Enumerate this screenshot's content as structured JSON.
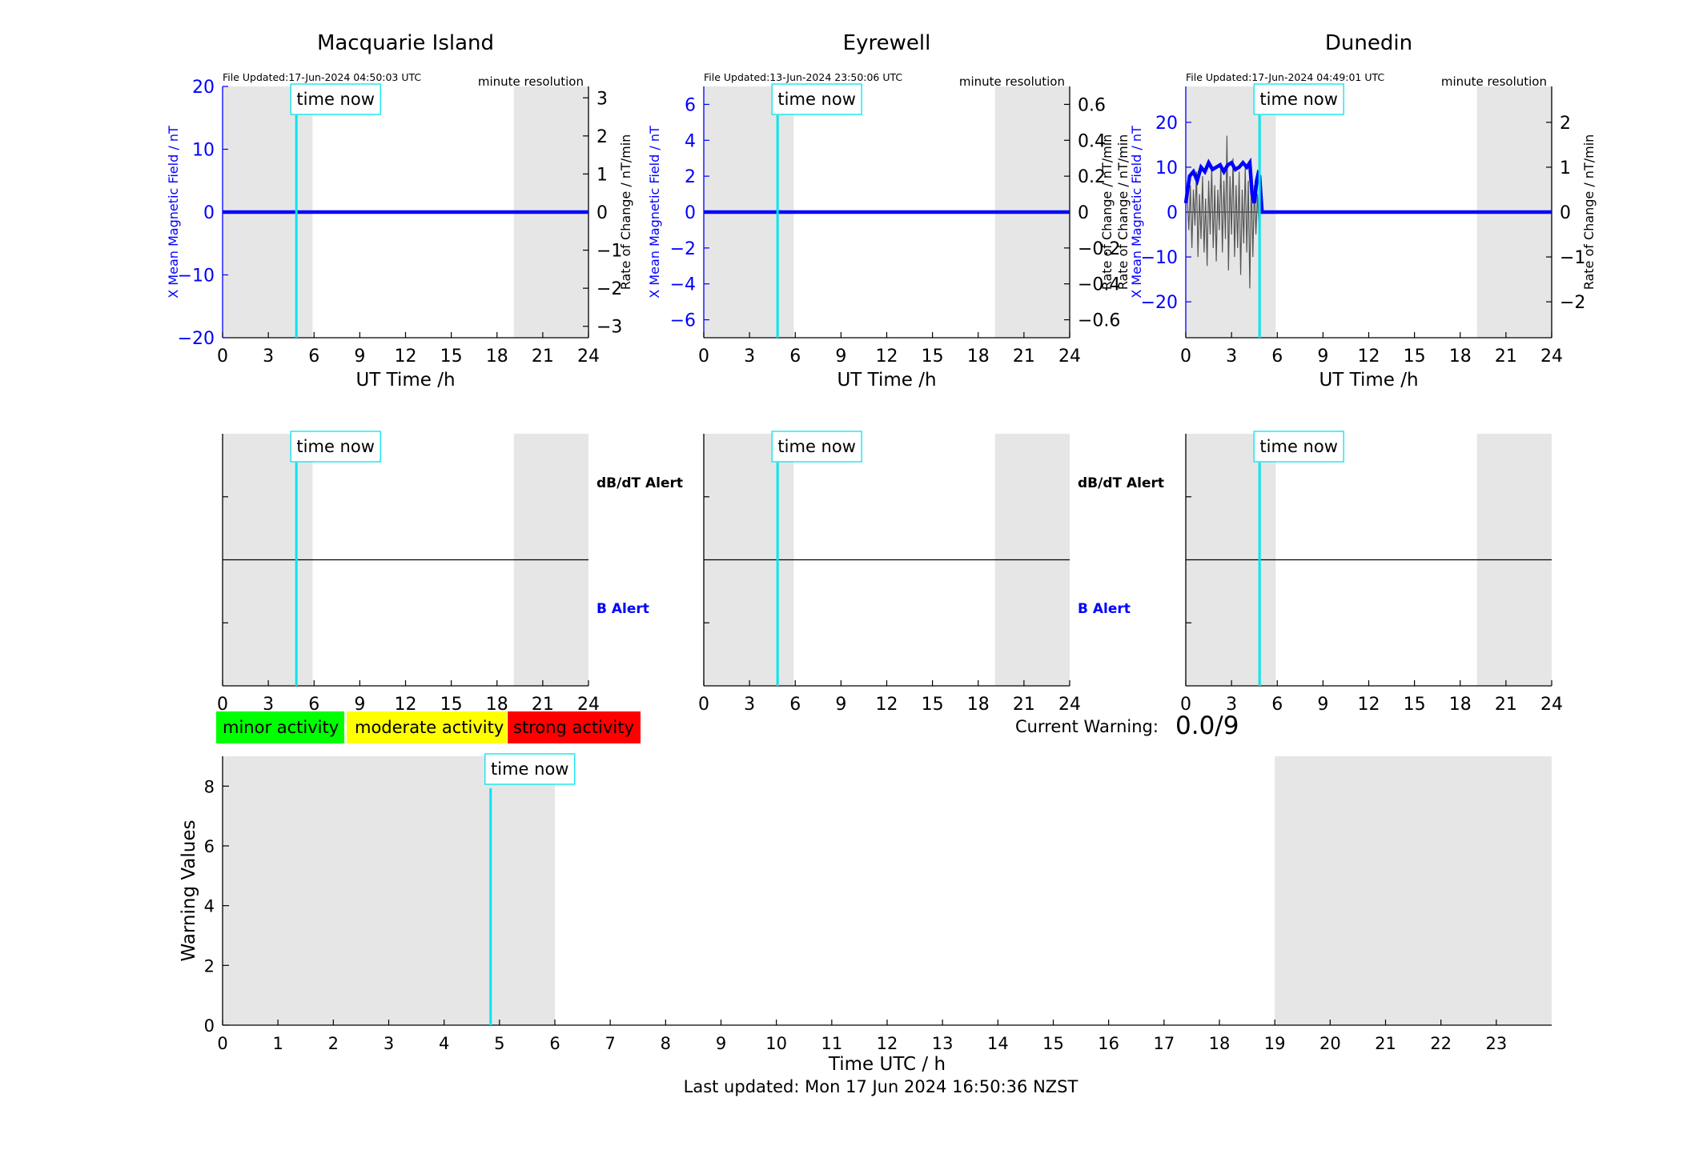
{
  "figure": {
    "last_updated": "Last updated: Mon 17 Jun 2024 16:50:36 NZST",
    "current_warning_label": "Current Warning:",
    "current_warning_value": "0.0/9",
    "time_now_label": "time now"
  },
  "legend": {
    "items": [
      {
        "label": "minor activity",
        "color": "#00ff00"
      },
      {
        "label": "moderate activity",
        "color": "#ffff00"
      },
      {
        "label": "strong activity",
        "color": "#ff0000"
      }
    ]
  },
  "colors": {
    "night_shade": "#e6e6e6",
    "time_now_line": "#00e5ee",
    "x_series": "#0000ff",
    "rate_series": "#555555",
    "b_alert": "#0000ff"
  },
  "chart_data": [
    {
      "type": "line",
      "title": "Macquarie Island",
      "file_updated": "File Updated:17-Jun-2024 04:50:03 UTC",
      "resolution": "minute resolution",
      "xlabel": "UT Time /h",
      "ylabel_left": "X Mean Magnetic Field / nT",
      "ylabel_right": "Rate of Change / nT/min",
      "xlim": [
        0,
        24
      ],
      "xticks": [
        0,
        3,
        6,
        9,
        12,
        15,
        18,
        21,
        24
      ],
      "ylim_left": [
        -20,
        20
      ],
      "yticks_left": [
        -20,
        -10,
        0,
        10,
        20
      ],
      "ylim_right": [
        -3.3,
        3.3
      ],
      "yticks_right": [
        -3,
        -2,
        -1,
        0,
        1,
        2,
        3
      ],
      "night_periods": [
        [
          0,
          5.9
        ],
        [
          19.1,
          24
        ]
      ],
      "time_now": 4.84,
      "series": [
        {
          "name": "X",
          "x": [
            0,
            24
          ],
          "y": [
            0,
            0
          ]
        }
      ]
    },
    {
      "type": "line",
      "title": "Eyrewell",
      "file_updated": "File Updated:13-Jun-2024 23:50:06 UTC",
      "resolution": "minute resolution",
      "xlabel": "UT Time /h",
      "ylabel_left": "X Mean Magnetic Field / nT",
      "ylabel_right": "Rate of Change / nT/min",
      "xlim": [
        0,
        24
      ],
      "xticks": [
        0,
        3,
        6,
        9,
        12,
        15,
        18,
        21,
        24
      ],
      "ylim_left": [
        -7,
        7
      ],
      "yticks_left": [
        -6,
        -4,
        -2,
        0,
        2,
        4,
        6
      ],
      "ylim_right": [
        -0.7,
        0.7
      ],
      "yticks_right": [
        -0.6,
        -0.4,
        -0.2,
        0,
        0.2,
        0.4,
        0.6
      ],
      "night_periods": [
        [
          0,
          5.9
        ],
        [
          19.1,
          24
        ]
      ],
      "time_now": 4.84,
      "series": [
        {
          "name": "X",
          "x": [
            0,
            24
          ],
          "y": [
            0,
            0
          ]
        }
      ]
    },
    {
      "type": "line",
      "title": "Dunedin",
      "file_updated": "File Updated:17-Jun-2024 04:49:01 UTC",
      "resolution": "minute resolution",
      "xlabel": "UT Time /h",
      "ylabel_left": "X Mean Magnetic Field / nT",
      "ylabel_right": "Rate of Change / nT/min",
      "ylabel_left_extra": "Rate of Change / nT/min",
      "xlim": [
        0,
        24
      ],
      "xticks": [
        0,
        3,
        6,
        9,
        12,
        15,
        18,
        21,
        24
      ],
      "ylim_left": [
        -28,
        28
      ],
      "yticks_left": [
        -20,
        -10,
        0,
        10,
        20
      ],
      "ylim_right": [
        -2.8,
        2.8
      ],
      "yticks_right": [
        -2,
        -1,
        0,
        1,
        2
      ],
      "night_periods": [
        [
          0,
          5.9
        ],
        [
          19.1,
          24
        ]
      ],
      "time_now": 4.84,
      "series": [
        {
          "name": "X",
          "x": [
            0,
            0.25,
            0.5,
            0.75,
            1.0,
            1.25,
            1.5,
            1.75,
            2.0,
            2.25,
            2.5,
            2.75,
            3.0,
            3.25,
            3.5,
            3.75,
            4.0,
            4.2,
            4.35,
            4.5,
            4.65,
            4.75,
            4.84,
            5.0,
            24
          ],
          "y": [
            2,
            8,
            9,
            7,
            10,
            9,
            11,
            9.5,
            10,
            10.5,
            9,
            10.5,
            11,
            9.5,
            10,
            11,
            10,
            11,
            4,
            2,
            7,
            8.5,
            8,
            0,
            0
          ]
        },
        {
          "name": "Rate",
          "x": [
            0.1,
            0.2,
            0.3,
            0.4,
            0.5,
            0.6,
            0.7,
            0.8,
            0.9,
            1.0,
            1.1,
            1.2,
            1.3,
            1.4,
            1.5,
            1.6,
            1.7,
            1.8,
            1.9,
            2.0,
            2.1,
            2.2,
            2.3,
            2.4,
            2.5,
            2.6,
            2.7,
            2.8,
            2.9,
            3.0,
            3.1,
            3.2,
            3.3,
            3.4,
            3.5,
            3.6,
            3.7,
            3.8,
            3.9,
            4.0,
            4.1,
            4.2,
            4.3,
            4.4,
            4.5,
            4.6,
            4.7,
            4.8
          ],
          "y": [
            0.3,
            -0.4,
            0.6,
            -0.8,
            0.5,
            -0.3,
            0.9,
            -1.0,
            0.4,
            -0.6,
            0.8,
            -0.9,
            0.3,
            -1.2,
            0.7,
            -0.5,
            1.0,
            -0.8,
            0.6,
            -1.1,
            0.5,
            -0.4,
            1.1,
            -0.9,
            0.7,
            -0.6,
            1.7,
            -1.3,
            0.8,
            -0.5,
            1.2,
            -1.0,
            0.6,
            -0.8,
            0.9,
            -1.4,
            0.5,
            -0.7,
            1.0,
            -0.9,
            0.7,
            -1.7,
            0.8,
            -1.0,
            0.6,
            -0.5,
            0.4,
            -0.3
          ]
        }
      ]
    },
    {
      "type": "line",
      "title": "",
      "labels": {
        "dbdt": "dB/dT Alert",
        "b": "B Alert"
      },
      "xlim": [
        0,
        24
      ],
      "xticks": [
        0,
        3,
        6,
        9,
        12,
        15,
        18,
        21,
        24
      ],
      "night_periods": [
        [
          0,
          5.9
        ],
        [
          19.1,
          24
        ]
      ],
      "time_now": 4.84
    },
    {
      "type": "line",
      "title": "",
      "labels": {
        "dbdt": "dB/dT Alert",
        "b": "B Alert"
      },
      "xlim": [
        0,
        24
      ],
      "xticks": [
        0,
        3,
        6,
        9,
        12,
        15,
        18,
        21,
        24
      ],
      "night_periods": [
        [
          0,
          5.9
        ],
        [
          19.1,
          24
        ]
      ],
      "time_now": 4.84
    },
    {
      "type": "line",
      "title": "",
      "xlim": [
        0,
        24
      ],
      "xticks": [
        0,
        3,
        6,
        9,
        12,
        15,
        18,
        21,
        24
      ],
      "night_periods": [
        [
          0,
          5.9
        ],
        [
          19.1,
          24
        ]
      ],
      "time_now": 4.84
    },
    {
      "type": "bar",
      "title": "",
      "xlabel": "Time UTC / h",
      "ylabel": "Warning Values",
      "xlim": [
        0,
        24
      ],
      "xticks": [
        0,
        1,
        2,
        3,
        4,
        5,
        6,
        7,
        8,
        9,
        10,
        11,
        12,
        13,
        14,
        15,
        16,
        17,
        18,
        19,
        20,
        21,
        22,
        23
      ],
      "ylim": [
        0,
        9
      ],
      "yticks": [
        0,
        2,
        4,
        6,
        8
      ],
      "night_periods": [
        [
          0,
          6
        ],
        [
          19,
          24
        ]
      ],
      "time_now": 4.84,
      "values": []
    }
  ]
}
